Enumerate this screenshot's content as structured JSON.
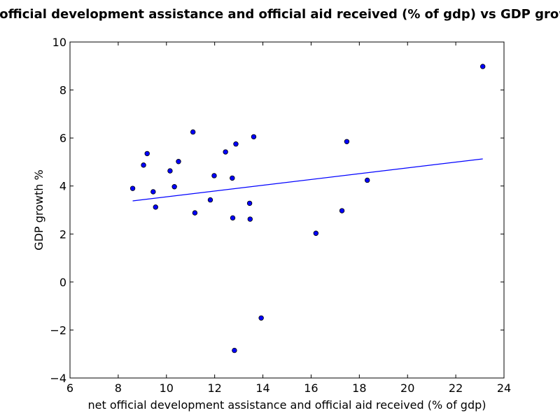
{
  "chart_data": {
    "type": "scatter",
    "title": "net official development assistance and official aid received (% of gdp) vs GDP growth %",
    "xlabel": "net official development assistance and official aid received (% of gdp)",
    "ylabel": "GDP growth %",
    "xlim": [
      6,
      24
    ],
    "ylim": [
      -4,
      10
    ],
    "xticks": [
      6,
      8,
      10,
      12,
      14,
      16,
      18,
      20,
      22,
      24
    ],
    "yticks": [
      -4,
      -2,
      0,
      2,
      4,
      6,
      8,
      10
    ],
    "grid": false,
    "colors": {
      "point": "#0000ff",
      "trend": "#0000ff"
    },
    "points": [
      {
        "x": 8.6,
        "y": 3.9
      },
      {
        "x": 9.05,
        "y": 4.87
      },
      {
        "x": 9.2,
        "y": 5.35
      },
      {
        "x": 9.45,
        "y": 3.76
      },
      {
        "x": 9.55,
        "y": 3.12
      },
      {
        "x": 10.15,
        "y": 4.63
      },
      {
        "x": 10.33,
        "y": 3.97
      },
      {
        "x": 10.5,
        "y": 5.02
      },
      {
        "x": 11.1,
        "y": 6.25
      },
      {
        "x": 11.18,
        "y": 2.88
      },
      {
        "x": 11.82,
        "y": 3.42
      },
      {
        "x": 11.98,
        "y": 4.43
      },
      {
        "x": 12.45,
        "y": 5.42
      },
      {
        "x": 12.73,
        "y": 4.33
      },
      {
        "x": 12.75,
        "y": 2.67
      },
      {
        "x": 12.82,
        "y": -2.85
      },
      {
        "x": 12.88,
        "y": 5.75
      },
      {
        "x": 13.45,
        "y": 3.28
      },
      {
        "x": 13.47,
        "y": 2.62
      },
      {
        "x": 13.62,
        "y": 6.05
      },
      {
        "x": 13.93,
        "y": -1.5
      },
      {
        "x": 16.2,
        "y": 2.03
      },
      {
        "x": 17.28,
        "y": 2.97
      },
      {
        "x": 17.48,
        "y": 5.85
      },
      {
        "x": 18.33,
        "y": 4.24
      },
      {
        "x": 23.12,
        "y": 8.98
      }
    ],
    "trendline": {
      "x": [
        8.6,
        23.12
      ],
      "y": [
        3.38,
        5.13
      ]
    }
  }
}
